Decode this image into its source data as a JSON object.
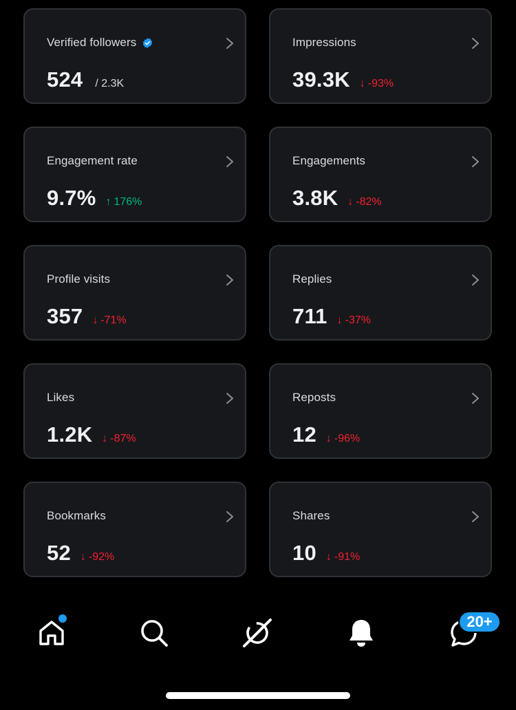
{
  "cards": [
    {
      "label": "Verified followers",
      "value": "524",
      "sub": "/ 2.3K",
      "verified": true
    },
    {
      "label": "Impressions",
      "value": "39.3K",
      "delta": "-93%",
      "direction": "down"
    },
    {
      "label": "Engagement rate",
      "value": "9.7%",
      "delta": "176%",
      "direction": "up"
    },
    {
      "label": "Engagements",
      "value": "3.8K",
      "delta": "-82%",
      "direction": "down"
    },
    {
      "label": "Profile visits",
      "value": "357",
      "delta": "-71%",
      "direction": "down"
    },
    {
      "label": "Replies",
      "value": "711",
      "delta": "-37%",
      "direction": "down"
    },
    {
      "label": "Likes",
      "value": "1.2K",
      "delta": "-87%",
      "direction": "down"
    },
    {
      "label": "Reposts",
      "value": "12",
      "delta": "-96%",
      "direction": "down"
    },
    {
      "label": "Bookmarks",
      "value": "52",
      "delta": "-92%",
      "direction": "down"
    },
    {
      "label": "Shares",
      "value": "10",
      "delta": "-91%",
      "direction": "down"
    }
  ],
  "nav": {
    "items": [
      {
        "icon": "home-icon",
        "has_dot": true
      },
      {
        "icon": "search-icon"
      },
      {
        "icon": "grok-icon"
      },
      {
        "icon": "bell-icon"
      },
      {
        "icon": "messages-icon",
        "badge": "20+"
      }
    ]
  },
  "colors": {
    "background": "#000000",
    "card": "#16181c",
    "border": "#2f3336",
    "down": "#f4212e",
    "up": "#00ba7c",
    "accent": "#1d9bf0"
  }
}
